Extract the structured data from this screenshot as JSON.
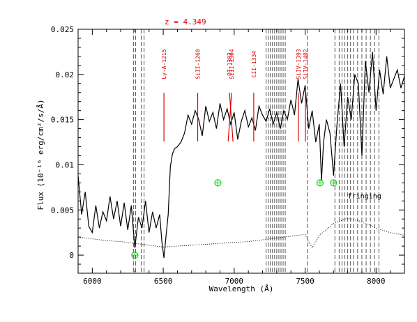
{
  "chart_data": {
    "type": "line",
    "title": "",
    "xlabel": "Wavelength (Å)",
    "ylabel": "Flux (10⁻¹⁶ erg/cm²/s/Å)",
    "xlim": [
      5900,
      8200
    ],
    "ylim": [
      -0.002,
      0.025
    ],
    "x_ticks": [
      6000,
      6500,
      7000,
      7500,
      8000
    ],
    "x_tick_labels": [
      "6000",
      "6500",
      "7000",
      "7500",
      "8000"
    ],
    "y_ticks": [
      0,
      0.005,
      0.01,
      0.015,
      0.02,
      0.025
    ],
    "y_tick_labels": [
      "0",
      "0.005",
      "0.01",
      "0.015",
      "0.02",
      "0.025"
    ],
    "grid": false,
    "redshift_label": "z = 4.349",
    "spectral_lines": [
      {
        "label": "Ly-A-1215",
        "x": 6505
      },
      {
        "label": "SiII-1260",
        "x": 6743
      },
      {
        "label": "OI-1302",
        "x": 6967
      },
      {
        "label": "SiII-1304",
        "x": 6982
      },
      {
        "label": "CII-1334",
        "x": 7138
      },
      {
        "label": "SiIV-1393",
        "x": 7452
      },
      {
        "label": "SiIV-1402",
        "x": 7502
      }
    ],
    "sky_line_x": [
      6290,
      6305,
      6345,
      6365,
      7225,
      7240,
      7255,
      7270,
      7285,
      7300,
      7315,
      7330,
      7345,
      7360,
      7515,
      7710,
      7740,
      7760,
      7780,
      7800,
      7820,
      7840,
      7870,
      7900,
      7930,
      7960,
      7990,
      8020
    ],
    "telluric_marker_x": [
      6300,
      6885,
      7605,
      7700
    ],
    "telluric_marker_y": [
      0.0,
      0.008,
      0.008,
      0.008
    ],
    "annotations": [
      {
        "text": "fringing",
        "x": 7800,
        "y": 0.0063
      }
    ],
    "series": [
      {
        "style": "solid",
        "x": [
          5900,
          5925,
          5950,
          5975,
          6000,
          6025,
          6050,
          6075,
          6100,
          6125,
          6150,
          6175,
          6200,
          6225,
          6250,
          6275,
          6300,
          6325,
          6350,
          6375,
          6400,
          6425,
          6450,
          6475,
          6490,
          6505,
          6520,
          6535,
          6550,
          6565,
          6580,
          6600,
          6625,
          6650,
          6675,
          6700,
          6725,
          6750,
          6775,
          6800,
          6825,
          6850,
          6875,
          6900,
          6925,
          6950,
          6975,
          7000,
          7025,
          7050,
          7075,
          7100,
          7125,
          7150,
          7175,
          7200,
          7225,
          7250,
          7275,
          7300,
          7325,
          7350,
          7375,
          7400,
          7425,
          7450,
          7475,
          7500,
          7525,
          7550,
          7575,
          7600,
          7615,
          7630,
          7650,
          7675,
          7700,
          7725,
          7750,
          7775,
          7800,
          7825,
          7850,
          7875,
          7900,
          7925,
          7950,
          7975,
          8000,
          8025,
          8050,
          8075,
          8100,
          8125,
          8150,
          8175,
          8200
        ],
        "y": [
          0.0088,
          0.0045,
          0.007,
          0.0032,
          0.0025,
          0.0055,
          0.003,
          0.0048,
          0.0038,
          0.0065,
          0.004,
          0.006,
          0.0032,
          0.0058,
          0.0028,
          0.0055,
          0.0008,
          0.0042,
          0.003,
          0.006,
          0.0025,
          0.0048,
          0.003,
          0.0045,
          0.0015,
          -0.0003,
          0.0022,
          0.0045,
          0.0098,
          0.0112,
          0.0118,
          0.012,
          0.0125,
          0.0135,
          0.0155,
          0.0145,
          0.016,
          0.015,
          0.0132,
          0.0165,
          0.0148,
          0.0158,
          0.014,
          0.0168,
          0.015,
          0.0162,
          0.0145,
          0.0158,
          0.0128,
          0.0148,
          0.016,
          0.0142,
          0.0152,
          0.0138,
          0.0165,
          0.0155,
          0.0148,
          0.0162,
          0.0145,
          0.0158,
          0.014,
          0.016,
          0.015,
          0.0172,
          0.0155,
          0.0195,
          0.0168,
          0.0188,
          0.014,
          0.016,
          0.0125,
          0.0145,
          0.0082,
          0.0125,
          0.015,
          0.0135,
          0.0088,
          0.0145,
          0.019,
          0.012,
          0.0175,
          0.015,
          0.02,
          0.019,
          0.011,
          0.0215,
          0.018,
          0.0225,
          0.016,
          0.0205,
          0.0178,
          0.022,
          0.0185,
          0.0195,
          0.0205,
          0.0185,
          0.0198
        ]
      },
      {
        "style": "dotted",
        "x": [
          5900,
          6000,
          6100,
          6200,
          6300,
          6400,
          6500,
          6600,
          6700,
          6800,
          6900,
          7000,
          7100,
          7200,
          7300,
          7400,
          7500,
          7550,
          7600,
          7700,
          7800,
          7900,
          8000,
          8100,
          8200
        ],
        "y": [
          0.002,
          0.0018,
          0.0016,
          0.0015,
          0.0013,
          0.0011,
          0.0009,
          0.001,
          0.0011,
          0.0012,
          0.0013,
          0.0014,
          0.0015,
          0.0017,
          0.0019,
          0.0021,
          0.0023,
          0.0008,
          0.0022,
          0.0035,
          0.0041,
          0.0037,
          0.003,
          0.0025,
          0.0022
        ]
      }
    ]
  }
}
